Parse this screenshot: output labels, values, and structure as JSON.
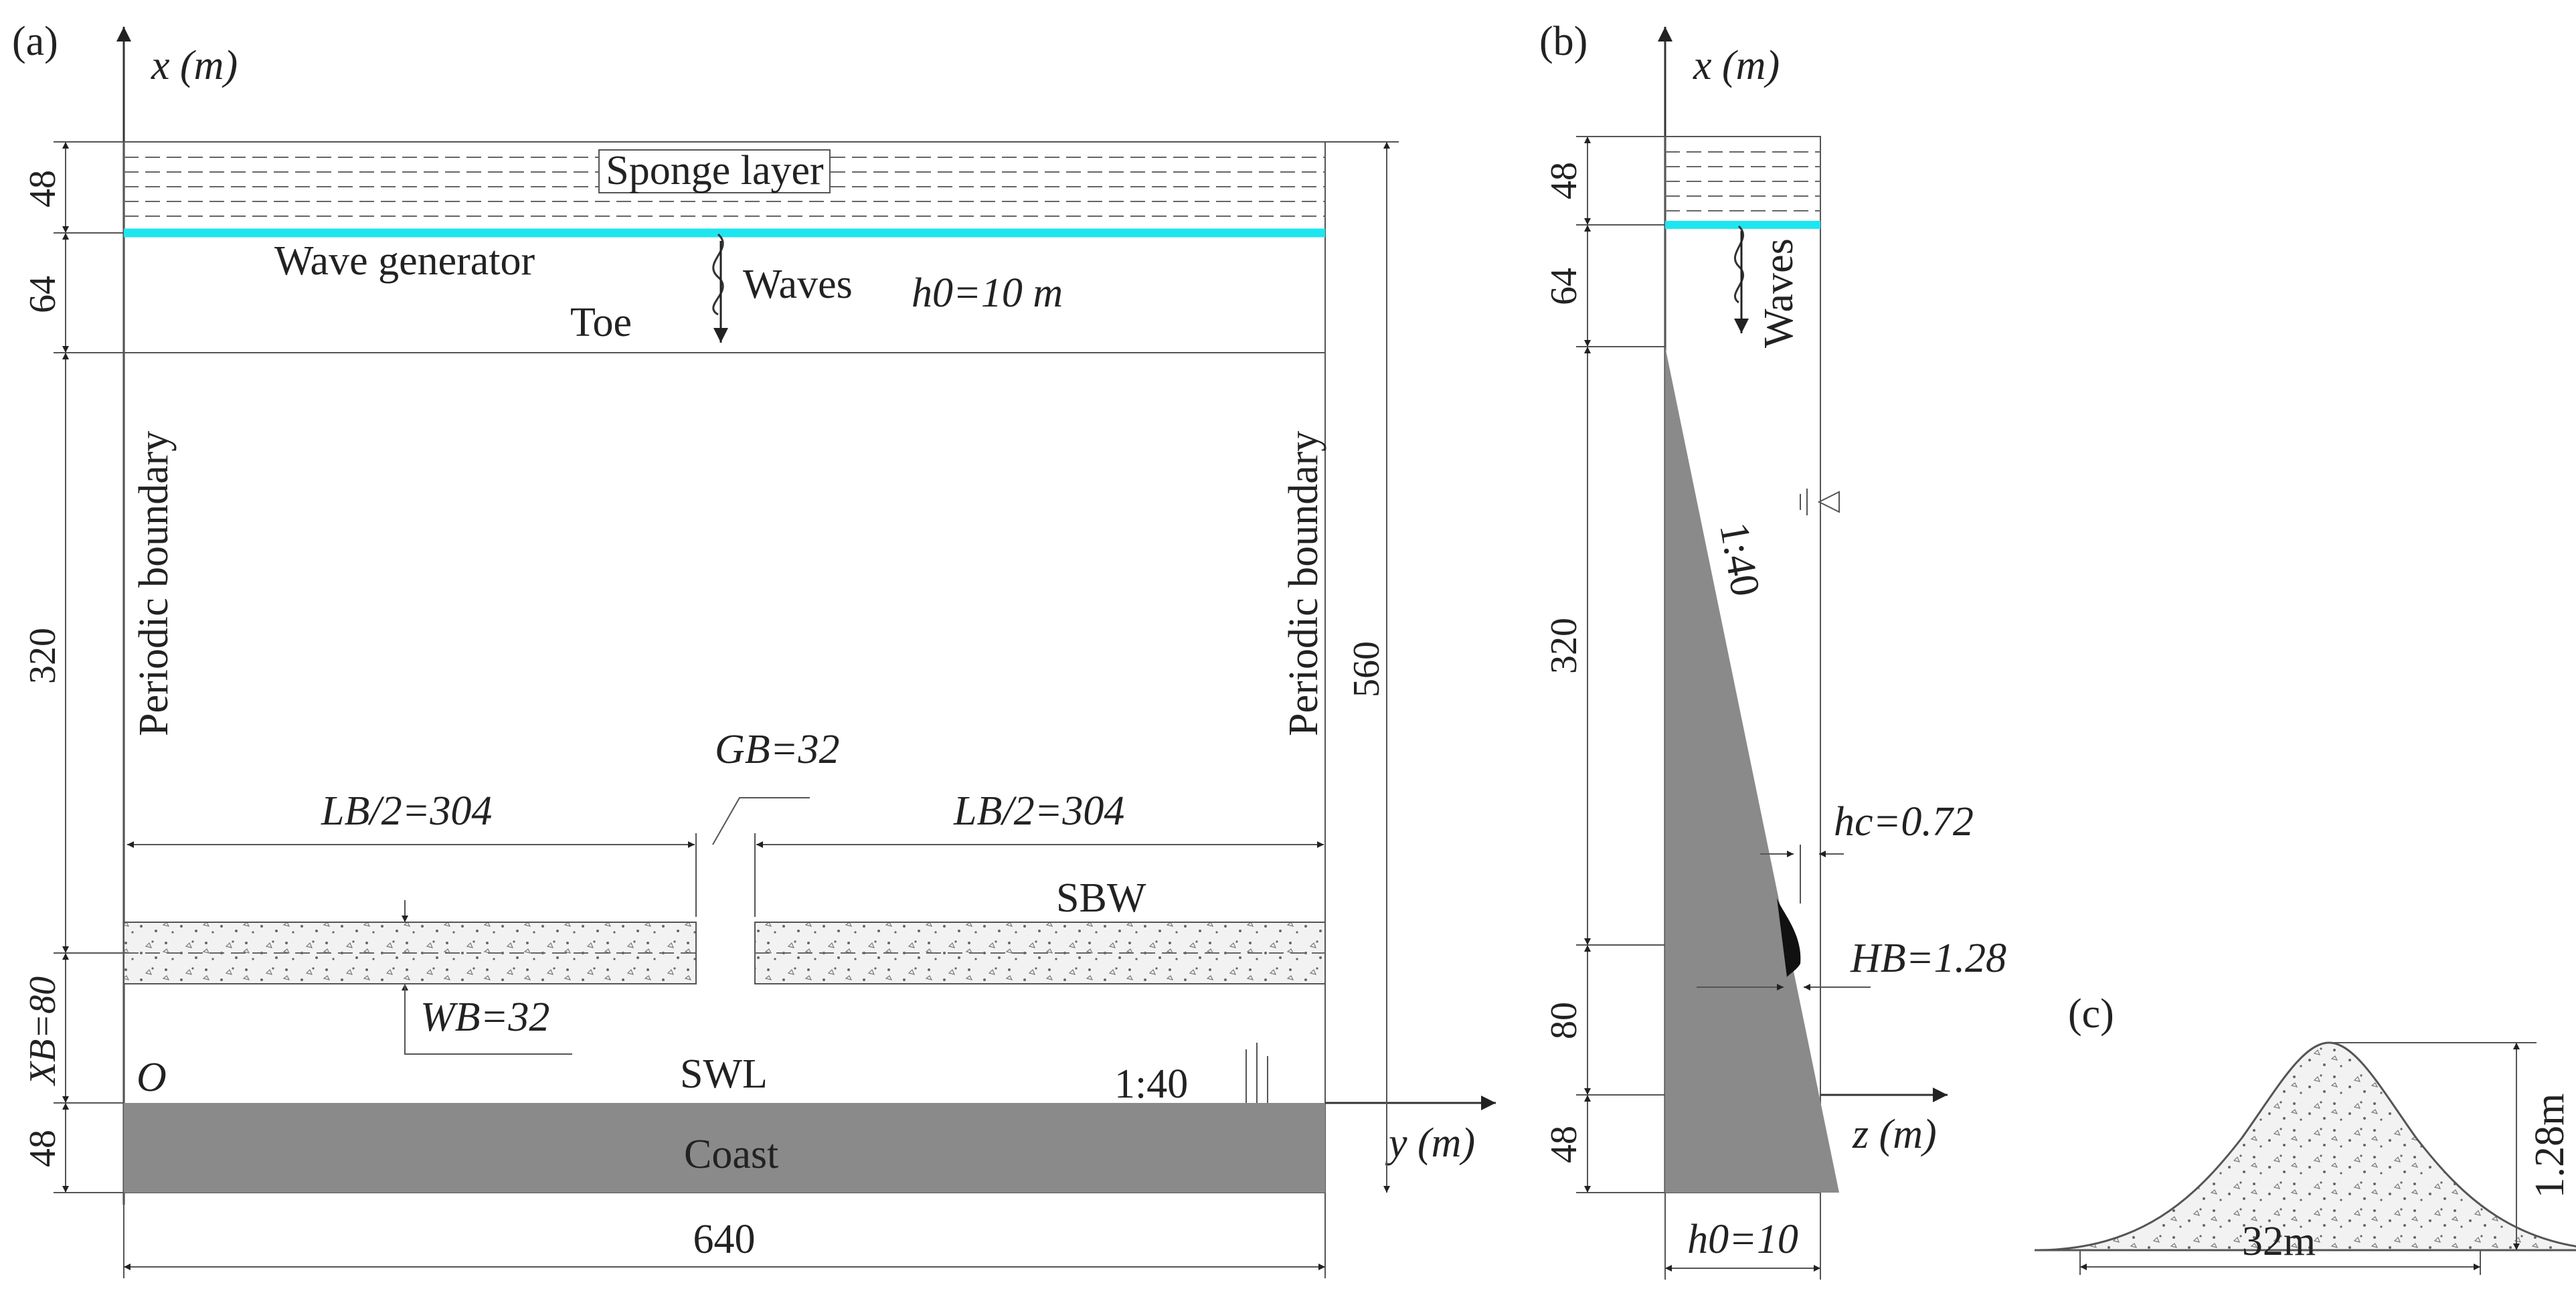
{
  "panel_a": {
    "tag": "(a)",
    "x_axis": "x (m)",
    "y_axis": "y (m)",
    "origin": "O",
    "sponge_label": "Sponge layer",
    "wave_generator_label": "Wave generator",
    "waves_label": "Waves",
    "depth_label": "h0=10 m",
    "toe_label": "Toe",
    "left_boundary_label": "Periodic boundary",
    "right_boundary_label": "Periodic boundary",
    "gap_label": "GB=32",
    "half_length_left": "LB/2=304",
    "half_length_right": "LB/2=304",
    "sbw_label": "SBW",
    "width_label": "WB=32",
    "offset_label": "XB=80",
    "swl_label": "SWL",
    "slope_label": "1:40",
    "coast_label": "Coast",
    "dim_48_top": "48",
    "dim_64": "64",
    "dim_320": "320",
    "dim_48_bottom": "48",
    "dim_total": "560",
    "dim_width": "640",
    "generator_color": "#1ee6f0",
    "coast_color": "#8a8a8a"
  },
  "panel_b": {
    "tag": "(b)",
    "x_axis": "x (m)",
    "z_axis": "z (m)",
    "waves_label": "Waves",
    "slope_label": "1:40",
    "hc_label": "hc=0.72",
    "hb_label": "HB=1.28",
    "dim_48_top": "48",
    "dim_64": "64",
    "dim_320": "320",
    "dim_80": "80",
    "dim_48_bottom": "48",
    "depth_label": "h0=10"
  },
  "panel_c": {
    "tag": "(c)",
    "height_label": "1.28m",
    "width_label": "32m"
  }
}
